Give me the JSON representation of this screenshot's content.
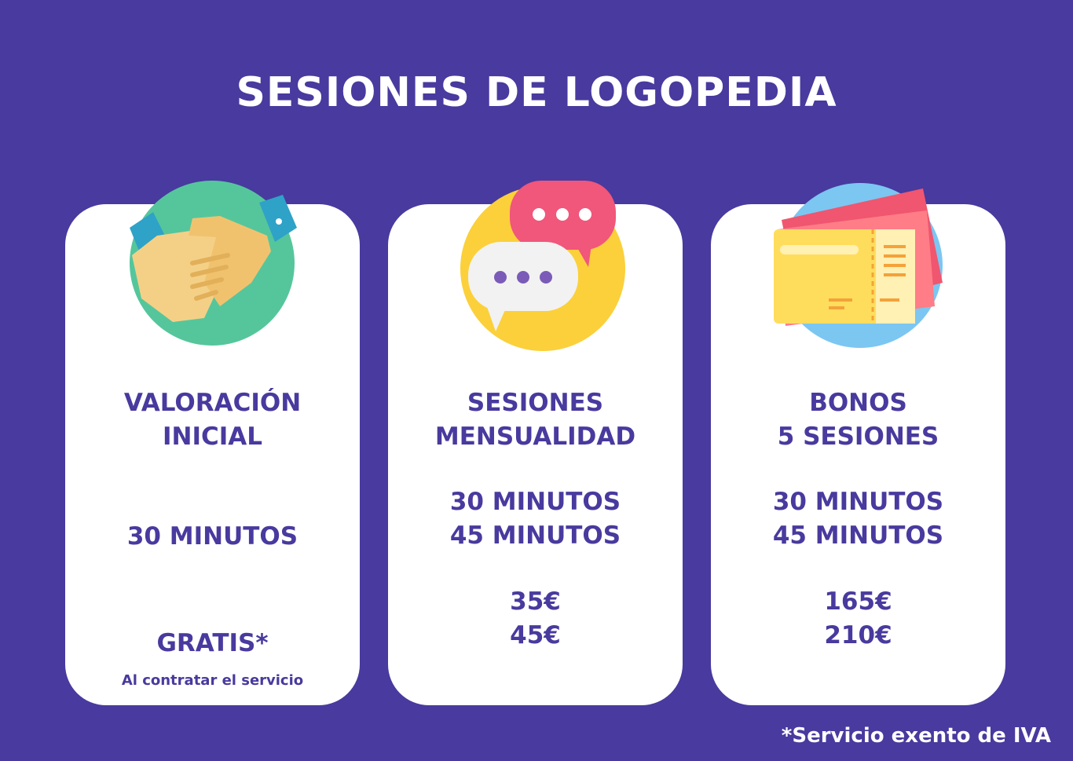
{
  "title": "SESIONES DE LOGOPEDIA",
  "cards": [
    {
      "icon": "handshake-icon",
      "heading": [
        "VALORACIÓN",
        "INICIAL"
      ],
      "durations": [
        "30 MINUTOS"
      ],
      "prices": [
        "GRATIS*"
      ],
      "note": "Al contratar el servicio"
    },
    {
      "icon": "chat-bubbles-icon",
      "heading": [
        "SESIONES",
        "MENSUALIDAD"
      ],
      "durations": [
        "30 MINUTOS",
        "45 MINUTOS"
      ],
      "prices": [
        "35€",
        "45€"
      ]
    },
    {
      "icon": "tickets-icon",
      "heading": [
        "BONOS",
        "5 SESIONES"
      ],
      "durations": [
        "30 MINUTOS",
        "45 MINUTOS"
      ],
      "prices": [
        "165€",
        "210€"
      ]
    }
  ],
  "footnote": "*Servicio exento de IVA",
  "colors": {
    "background": "#483A9E",
    "card": "#FFFFFF",
    "text": "#483A9E"
  }
}
